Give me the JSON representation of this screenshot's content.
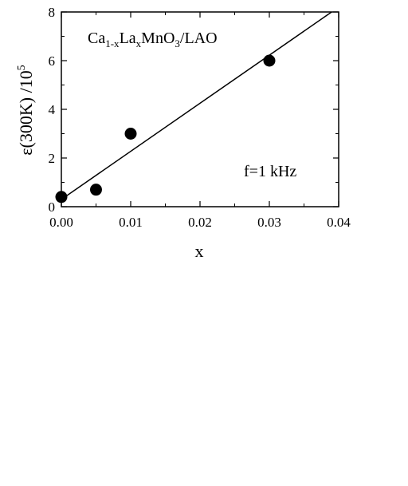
{
  "chart_data": {
    "type": "scatter",
    "title": "",
    "xlabel": "x",
    "ylabel_parts": {
      "base": "ε(300K) /10",
      "sup": "5"
    },
    "xlim": [
      0,
      0.04
    ],
    "ylim": [
      0,
      8
    ],
    "x_ticks": [
      "0.00",
      "0.01",
      "0.02",
      "0.03",
      "0.04"
    ],
    "y_ticks": [
      "0",
      "2",
      "4",
      "6",
      "8"
    ],
    "grid": false,
    "series": [
      {
        "points": [
          {
            "x": 0.0,
            "y": 0.4
          },
          {
            "x": 0.005,
            "y": 0.7
          },
          {
            "x": 0.01,
            "y": 3.0
          },
          {
            "x": 0.03,
            "y": 6.0
          }
        ]
      }
    ],
    "fit_line": {
      "x": [
        0.0,
        0.04
      ],
      "y": [
        0.3,
        8.2
      ]
    },
    "annotations": {
      "material": {
        "ca": "Ca",
        "ca_sub": "1-x",
        "la": "La",
        "la_sub": "x",
        "mno": "MnO",
        "mno_sub": "3",
        "rest": "/LAO"
      },
      "frequency": "f=1 kHz"
    },
    "colors": {
      "marker": "#000000",
      "line": "#000000"
    }
  }
}
